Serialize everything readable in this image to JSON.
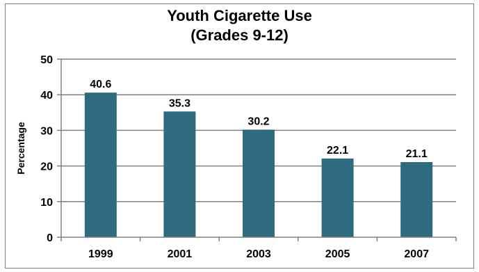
{
  "chart_data": {
    "type": "bar",
    "title": "Youth Cigarette Use",
    "subtitle": "(Grades 9-12)",
    "xlabel": "",
    "ylabel": "Percentage",
    "categories": [
      "1999",
      "2001",
      "2003",
      "2005",
      "2007"
    ],
    "values": [
      40.6,
      35.3,
      30.2,
      22.1,
      21.1
    ],
    "value_labels": [
      "40.6",
      "35.3",
      "30.2",
      "22.1",
      "21.1"
    ],
    "ylim": [
      0,
      50
    ],
    "yticks": [
      "0",
      "10",
      "20",
      "30",
      "40",
      "50"
    ],
    "grid": true,
    "legend": "none",
    "colors": {
      "bar": "#2e6b7e",
      "grid": "#808080",
      "axis": "#808080"
    }
  }
}
